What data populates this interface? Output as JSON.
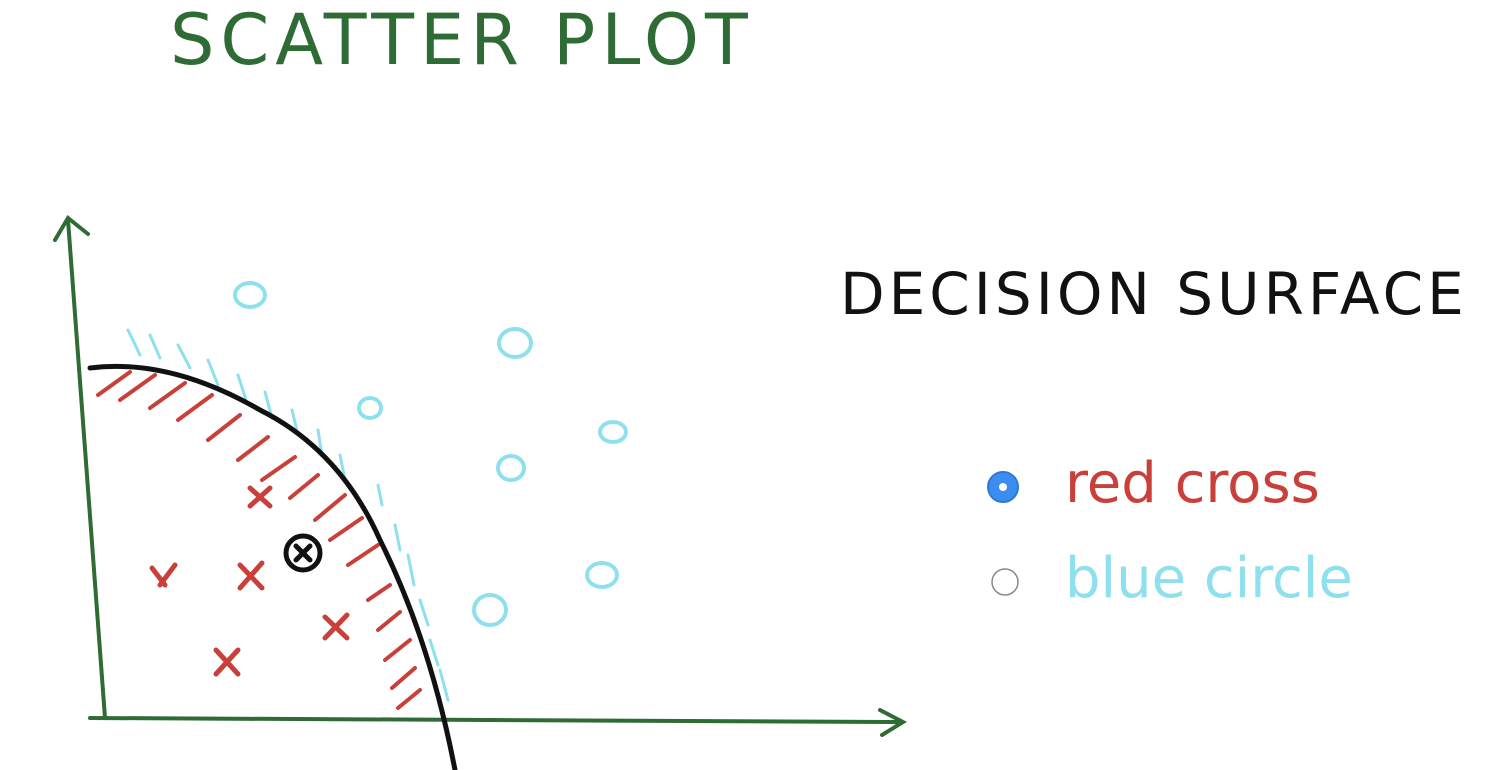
{
  "title": "SCATTER PLOT",
  "subtitle": "DECISION SURFACE",
  "options": [
    {
      "label": "red cross",
      "color": "#c9403a",
      "selected": true
    },
    {
      "label": "blue circle",
      "color": "#8fe0ef",
      "selected": false
    }
  ]
}
